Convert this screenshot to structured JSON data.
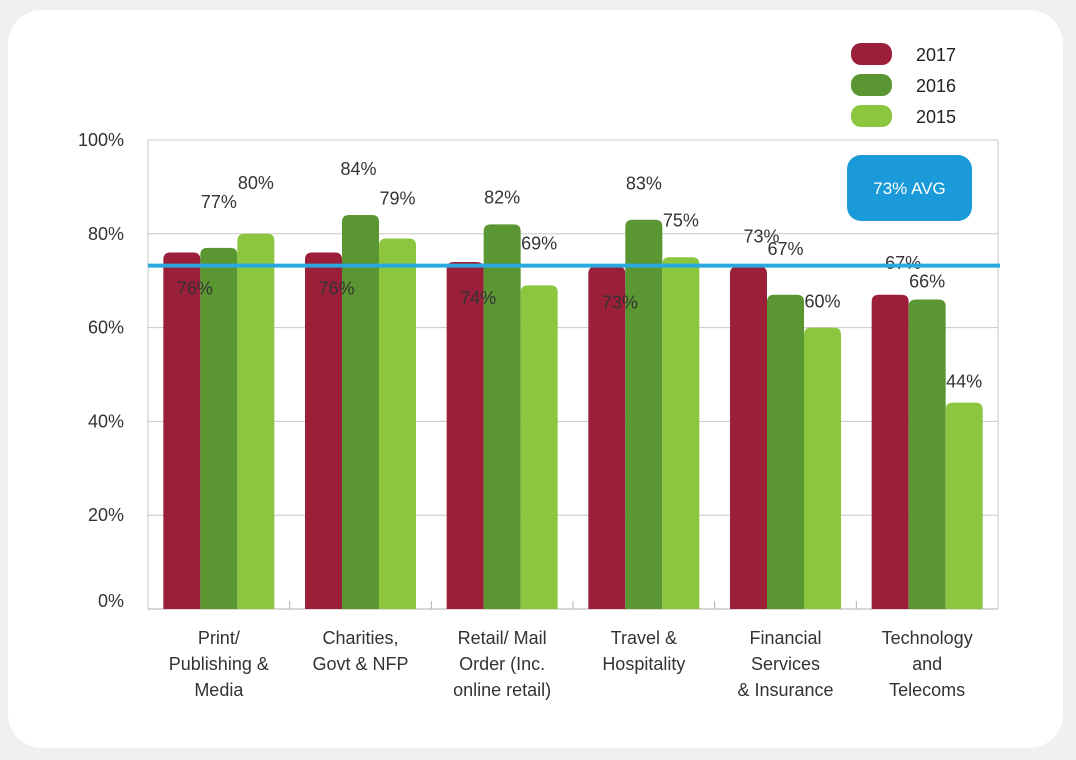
{
  "chart_data": {
    "type": "bar",
    "categories": [
      [
        "Print/",
        "Publishing &",
        "Media"
      ],
      [
        "Charities,",
        "Govt & NFP"
      ],
      [
        "Retail/ Mail",
        "Order (Inc.",
        "online retail)"
      ],
      [
        "Travel &",
        "Hospitality"
      ],
      [
        "Financial",
        "Services",
        "& Insurance"
      ],
      [
        "Technology",
        "and",
        "Telecoms"
      ]
    ],
    "series": [
      {
        "name": "2017",
        "color": "#9b1f38",
        "values": [
          76,
          76,
          74,
          73,
          73,
          67
        ]
      },
      {
        "name": "2016",
        "color": "#5a9632",
        "values": [
          77,
          84,
          82,
          83,
          67,
          66
        ]
      },
      {
        "name": "2015",
        "color": "#8cc63f",
        "values": [
          80,
          79,
          69,
          75,
          60,
          44
        ]
      }
    ],
    "ylim": [
      0,
      100
    ],
    "yticks": [
      "0%",
      "20%",
      "40%",
      "60%",
      "80%",
      "100%"
    ],
    "value_suffix": "%",
    "grid": true,
    "legend": "top-right",
    "average": {
      "value": 73,
      "label": "73% AVG",
      "line_color": "#29a9e0",
      "box_color": "#1a9ad8"
    }
  }
}
